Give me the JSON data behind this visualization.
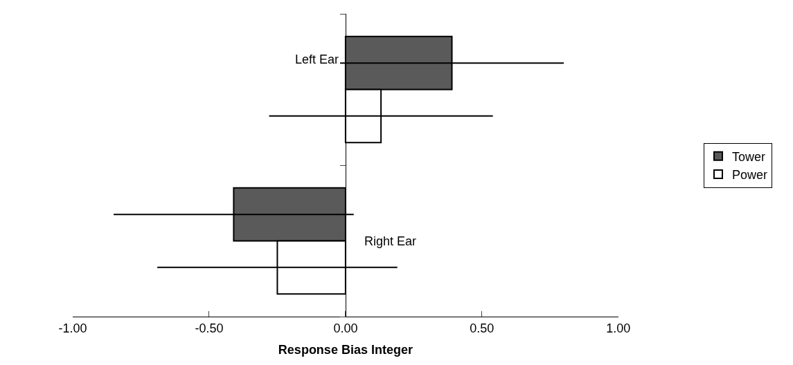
{
  "chart_data": {
    "type": "bar",
    "orientation": "horizontal",
    "xlabel": "Response Bias Integer",
    "categories": [
      "Left Ear",
      "Right Ear"
    ],
    "series": [
      {
        "name": "Tower",
        "color": "#5a5a5a",
        "values": [
          0.39,
          -0.41
        ],
        "errors": [
          0.41,
          0.44
        ]
      },
      {
        "name": "Power",
        "color": "#ffffff",
        "values": [
          0.13,
          -0.25
        ],
        "errors": [
          0.41,
          0.44
        ]
      }
    ],
    "xlim": [
      -1,
      1
    ],
    "xticks": [
      {
        "value": -1,
        "label": "-1.00"
      },
      {
        "value": -0.5,
        "label": "-0.50"
      },
      {
        "value": 0,
        "label": "0.00"
      },
      {
        "value": 0.5,
        "label": "0.50"
      },
      {
        "value": 1,
        "label": "1.00"
      }
    ],
    "legend": "right"
  }
}
